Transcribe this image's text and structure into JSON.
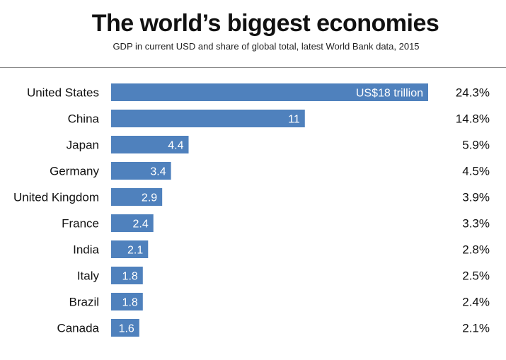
{
  "chart_data": {
    "type": "bar",
    "orientation": "horizontal",
    "title": "The world’s biggest economies",
    "subtitle": "GDP in current USD and share of global total, latest World Bank data, 2015",
    "xlabel": "",
    "ylabel": "",
    "unit": "US$ trillion",
    "categories": [
      "United States",
      "China",
      "Japan",
      "Germany",
      "United Kingdom",
      "France",
      "India",
      "Italy",
      "Brazil",
      "Canada"
    ],
    "values": [
      18,
      11,
      4.4,
      3.4,
      2.9,
      2.4,
      2.1,
      1.8,
      1.8,
      1.6
    ],
    "value_labels": [
      "US$18 trillion",
      "11",
      "4.4",
      "3.4",
      "2.9",
      "2.4",
      "2.1",
      "1.8",
      "1.8",
      "1.6"
    ],
    "shares": [
      "24.3%",
      "14.8%",
      "5.9%",
      "4.5%",
      "3.9%",
      "3.3%",
      "2.8%",
      "2.5%",
      "2.4%",
      "2.1%"
    ],
    "xlim": [
      0,
      18
    ],
    "grid": false,
    "legend": "none",
    "bar_color": "#4f81bd"
  }
}
